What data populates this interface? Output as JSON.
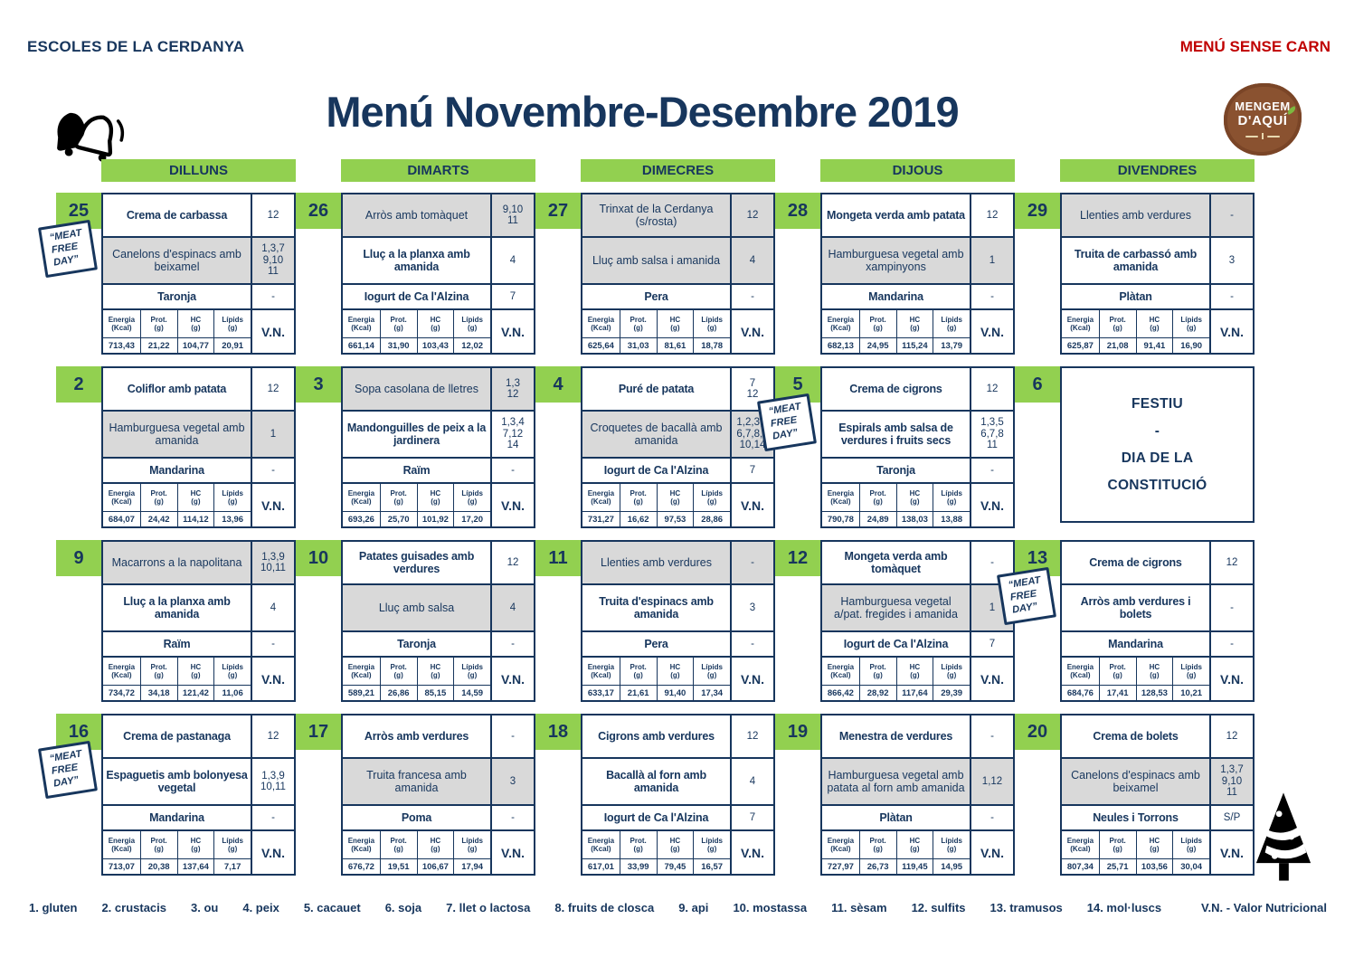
{
  "header": {
    "school": "ESCOLES DE LA CERDANYA",
    "menu_type": "MENÚ SENSE CARN",
    "title": "Menú Novembre-Desembre 2019",
    "logo": {
      "line1": "MENGEM",
      "line2": "D'AQUÍ"
    }
  },
  "colors": {
    "navy": "#17365D",
    "red": "#C00000",
    "green": "#92D050",
    "shade": "#D9D9D9",
    "brown": "#8a5230"
  },
  "columns": [
    "DILLUNS",
    "DIMARTS",
    "DIMECRES",
    "DIJOUS",
    "DIVENDRES"
  ],
  "meat_free_label": "“MEAT\nFREE\nDAY”",
  "nutrition_headers": [
    {
      "label": "Energia",
      "unit": "(Kcal)"
    },
    {
      "label": "Prot.",
      "unit": "(g)"
    },
    {
      "label": "HC",
      "unit": "(g)"
    },
    {
      "label": "Lípids",
      "unit": "(g)"
    }
  ],
  "vn_label": "V.N.",
  "days": [
    {
      "day": "25",
      "meat_free": true,
      "items": [
        {
          "text": "Crema de carbassa",
          "allergens": "12",
          "shaded": false
        },
        {
          "text": "Canelons d'espinacs amb beixamel",
          "allergens": "1,3,7\n9,10\n11",
          "shaded": true
        },
        {
          "text": "Taronja",
          "allergens": "-",
          "shaded": false
        }
      ],
      "nutrition": [
        "713,43",
        "21,22",
        "104,77",
        "20,91"
      ]
    },
    {
      "day": "26",
      "items": [
        {
          "text": "Arròs amb tomàquet",
          "allergens": "9,10\n11",
          "shaded": true
        },
        {
          "text": "Lluç a la planxa amb amanida",
          "allergens": "4",
          "shaded": false
        },
        {
          "text": "Iogurt de Ca l'Alzina",
          "allergens": "7",
          "shaded": false
        }
      ],
      "nutrition": [
        "661,14",
        "31,90",
        "103,43",
        "12,02"
      ]
    },
    {
      "day": "27",
      "items": [
        {
          "text": "Trinxat de la Cerdanya (s/rosta)",
          "allergens": "12",
          "shaded": true
        },
        {
          "text": "Lluç amb salsa i amanida",
          "allergens": "4",
          "shaded": true
        },
        {
          "text": "Pera",
          "allergens": "-",
          "shaded": false
        }
      ],
      "nutrition": [
        "625,64",
        "31,03",
        "81,61",
        "18,78"
      ]
    },
    {
      "day": "28",
      "items": [
        {
          "text": "Mongeta verda amb patata",
          "allergens": "12",
          "shaded": false
        },
        {
          "text": "Hamburguesa vegetal amb xampinyons",
          "allergens": "1",
          "shaded": true
        },
        {
          "text": "Mandarina",
          "allergens": "-",
          "shaded": false
        }
      ],
      "nutrition": [
        "682,13",
        "24,95",
        "115,24",
        "13,79"
      ]
    },
    {
      "day": "29",
      "items": [
        {
          "text": "Llenties amb verdures",
          "allergens": "-",
          "shaded": true
        },
        {
          "text": "Truita de carbassó amb amanida",
          "allergens": "3",
          "shaded": false
        },
        {
          "text": "Plàtan",
          "allergens": "-",
          "shaded": false
        }
      ],
      "nutrition": [
        "625,87",
        "21,08",
        "91,41",
        "16,90"
      ]
    },
    {
      "day": "2",
      "items": [
        {
          "text": "Coliflor amb patata",
          "allergens": "12",
          "shaded": false
        },
        {
          "text": "Hamburguesa vegetal amb amanida",
          "allergens": "1",
          "shaded": true
        },
        {
          "text": "Mandarina",
          "allergens": "-",
          "shaded": false
        }
      ],
      "nutrition": [
        "684,07",
        "24,42",
        "114,12",
        "13,96"
      ]
    },
    {
      "day": "3",
      "items": [
        {
          "text": "Sopa casolana de lletres",
          "allergens": "1,3\n12",
          "shaded": true
        },
        {
          "text": "Mandonguilles de peix a la jardinera",
          "allergens": "1,3,4\n7,12\n14",
          "shaded": false
        },
        {
          "text": "Raïm",
          "allergens": "-",
          "shaded": false
        }
      ],
      "nutrition": [
        "693,26",
        "25,70",
        "101,92",
        "17,20"
      ]
    },
    {
      "day": "4",
      "items": [
        {
          "text": "Puré de patata",
          "allergens": "7\n12",
          "shaded": false
        },
        {
          "text": "Croquetes de bacallà amb amanida",
          "allergens": "1,2,3,4\n6,7,8,9\n10,14",
          "shaded": true
        },
        {
          "text": "Iogurt de Ca l'Alzina",
          "allergens": "7",
          "shaded": false
        }
      ],
      "nutrition": [
        "731,27",
        "16,62",
        "97,53",
        "28,86"
      ]
    },
    {
      "day": "5",
      "meat_free": true,
      "items": [
        {
          "text": "Crema de cigrons",
          "allergens": "12",
          "shaded": false
        },
        {
          "text": "Espirals amb salsa de verdures i fruits secs",
          "allergens": "1,3,5\n6,7,8\n11",
          "shaded": false
        },
        {
          "text": "Taronja",
          "allergens": "-",
          "shaded": false
        }
      ],
      "nutrition": [
        "790,78",
        "24,89",
        "138,03",
        "13,88"
      ]
    },
    {
      "day": "6",
      "festiu_lines": [
        "FESTIU",
        "-",
        "DIA DE LA",
        "CONSTITUCIÓ"
      ]
    },
    {
      "day": "9",
      "items": [
        {
          "text": "Macarrons a la napolitana",
          "allergens": "1,3,9\n10,11",
          "shaded": true
        },
        {
          "text": "Lluç a la planxa amb amanida",
          "allergens": "4",
          "shaded": false
        },
        {
          "text": "Raïm",
          "allergens": "-",
          "shaded": false
        }
      ],
      "nutrition": [
        "734,72",
        "34,18",
        "121,42",
        "11,06"
      ]
    },
    {
      "day": "10",
      "items": [
        {
          "text": "Patates guisades amb verdures",
          "allergens": "12",
          "shaded": false
        },
        {
          "text": "Lluç amb salsa",
          "allergens": "4",
          "shaded": true
        },
        {
          "text": "Taronja",
          "allergens": "-",
          "shaded": false
        }
      ],
      "nutrition": [
        "589,21",
        "26,86",
        "85,15",
        "14,59"
      ]
    },
    {
      "day": "11",
      "items": [
        {
          "text": "Llenties amb verdures",
          "allergens": "-",
          "shaded": true
        },
        {
          "text": "Truita d'espinacs amb amanida",
          "allergens": "3",
          "shaded": false
        },
        {
          "text": "Pera",
          "allergens": "-",
          "shaded": false
        }
      ],
      "nutrition": [
        "633,17",
        "21,61",
        "91,40",
        "17,34"
      ]
    },
    {
      "day": "12",
      "items": [
        {
          "text": "Mongeta verda amb tomàquet",
          "allergens": "-",
          "shaded": false
        },
        {
          "text": "Hamburguesa vegetal a/pat. fregides i amanida",
          "allergens": "1",
          "shaded": true
        },
        {
          "text": "Iogurt de Ca l'Alzina",
          "allergens": "7",
          "shaded": false
        }
      ],
      "nutrition": [
        "866,42",
        "28,92",
        "117,64",
        "29,39"
      ]
    },
    {
      "day": "13",
      "meat_free": true,
      "items": [
        {
          "text": "Crema de cigrons",
          "allergens": "12",
          "shaded": false
        },
        {
          "text": "Arròs amb verdures i bolets",
          "allergens": "-",
          "shaded": false
        },
        {
          "text": "Mandarina",
          "allergens": "-",
          "shaded": false
        }
      ],
      "nutrition": [
        "684,76",
        "17,41",
        "128,53",
        "10,21"
      ]
    },
    {
      "day": "16",
      "meat_free": true,
      "items": [
        {
          "text": "Crema de pastanaga",
          "allergens": "12",
          "shaded": false
        },
        {
          "text": "Espaguetis amb bolonyesa vegetal",
          "allergens": "1,3,9\n10,11",
          "shaded": false
        },
        {
          "text": "Mandarina",
          "allergens": "-",
          "shaded": false
        }
      ],
      "nutrition": [
        "713,07",
        "20,38",
        "137,64",
        "7,17"
      ]
    },
    {
      "day": "17",
      "items": [
        {
          "text": "Arròs amb verdures",
          "allergens": "-",
          "shaded": false
        },
        {
          "text": "Truita francesa amb amanida",
          "allergens": "3",
          "shaded": true
        },
        {
          "text": "Poma",
          "allergens": "-",
          "shaded": false
        }
      ],
      "nutrition": [
        "676,72",
        "19,51",
        "106,67",
        "17,94"
      ]
    },
    {
      "day": "18",
      "items": [
        {
          "text": "Cigrons amb verdures",
          "allergens": "12",
          "shaded": false
        },
        {
          "text": "Bacallà al forn amb amanida",
          "allergens": "4",
          "shaded": false
        },
        {
          "text": "Iogurt de Ca l'Alzina",
          "allergens": "7",
          "shaded": false
        }
      ],
      "nutrition": [
        "617,01",
        "33,99",
        "79,45",
        "16,57"
      ]
    },
    {
      "day": "19",
      "items": [
        {
          "text": "Menestra de verdures",
          "allergens": "-",
          "shaded": false
        },
        {
          "text": "Hamburguesa vegetal amb patata al forn amb amanida",
          "allergens": "1,12",
          "shaded": true
        },
        {
          "text": "Plàtan",
          "allergens": "-",
          "shaded": false
        }
      ],
      "nutrition": [
        "727,97",
        "26,73",
        "119,45",
        "14,95"
      ]
    },
    {
      "day": "20",
      "tree": true,
      "items": [
        {
          "text": "Crema de bolets",
          "allergens": "12",
          "shaded": false
        },
        {
          "text": "Canelons d'espinacs amb beixamel",
          "allergens": "1,3,7\n9,10\n11",
          "shaded": true
        },
        {
          "text": "Neules i Torrons",
          "allergens": "S/P",
          "shaded": false
        }
      ],
      "nutrition": [
        "807,34",
        "25,71",
        "103,56",
        "30,04"
      ]
    }
  ],
  "legend": [
    "1. gluten",
    "2. crustacis",
    "3. ou",
    "4. peix",
    "5. cacauet",
    "6. soja",
    "7. llet o lactosa",
    "8. fruits de closca",
    "9. api",
    "10. mostassa",
    "11. sèsam",
    "12. sulfits",
    "13. tramusos",
    "14. mol·luscs"
  ],
  "footer": {
    "vn_note": "V.N. - Valor Nutricional"
  }
}
